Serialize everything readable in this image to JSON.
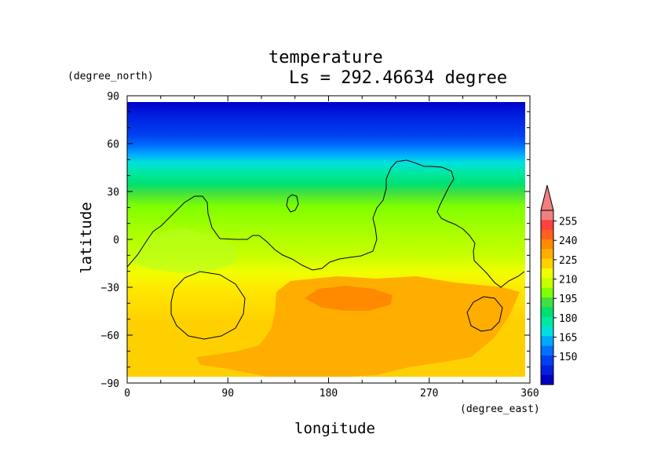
{
  "chart_data": {
    "type": "heatmap",
    "title": "temperature",
    "subtitle": "Ls = 292.46634 degree",
    "xlabel": "longitude",
    "ylabel": "latitude",
    "x_unit": "(degree_east)",
    "y_unit": "(degree_north)",
    "xlim": [
      0,
      360
    ],
    "ylim": [
      -90,
      90
    ],
    "x_ticks": [
      0,
      90,
      180,
      270,
      360
    ],
    "y_ticks": [
      90,
      60,
      30,
      0,
      -30,
      -60,
      -90
    ],
    "x_tick_labels": [
      "0",
      "90",
      "180",
      "270",
      "360"
    ],
    "y_tick_labels": [
      "90",
      "60",
      "30",
      "0",
      "−30",
      "−60",
      "−90"
    ],
    "colorbar": {
      "labels": [
        "255",
        "240",
        "225",
        "210",
        "195",
        "180",
        "165",
        "150"
      ],
      "levels": [
        255,
        240,
        225,
        210,
        195,
        180,
        165,
        150
      ],
      "colors": [
        "#ff4040",
        "#ff8a00",
        "#ffd000",
        "#c8ff00",
        "#40e040",
        "#00e8a0",
        "#00a8ff",
        "#0020e0"
      ],
      "band_colors_top_to_bottom": [
        "#f08080",
        "#ff4040",
        "#ff6020",
        "#ff8a00",
        "#ffae00",
        "#ffd000",
        "#f0ff00",
        "#c8ff00",
        "#80ff00",
        "#40e040",
        "#00e070",
        "#00e8a0",
        "#00e0e0",
        "#00a8ff",
        "#0070ff",
        "#0040f0",
        "#0020e0",
        "#0000c0"
      ]
    },
    "zonal_profile": [
      {
        "lat": 90,
        "value": 145
      },
      {
        "lat": 75,
        "value": 150
      },
      {
        "lat": 65,
        "value": 168
      },
      {
        "lat": 55,
        "value": 185
      },
      {
        "lat": 45,
        "value": 196
      },
      {
        "lat": 35,
        "value": 205
      },
      {
        "lat": 20,
        "value": 212
      },
      {
        "lat": 0,
        "value": 217
      },
      {
        "lat": -20,
        "value": 221
      },
      {
        "lat": -40,
        "value": 226
      },
      {
        "lat": -70,
        "value": 228
      },
      {
        "lat": -90,
        "value": 226
      }
    ],
    "hot_spot": {
      "lon": 200,
      "lat": -42,
      "value": 235
    }
  }
}
